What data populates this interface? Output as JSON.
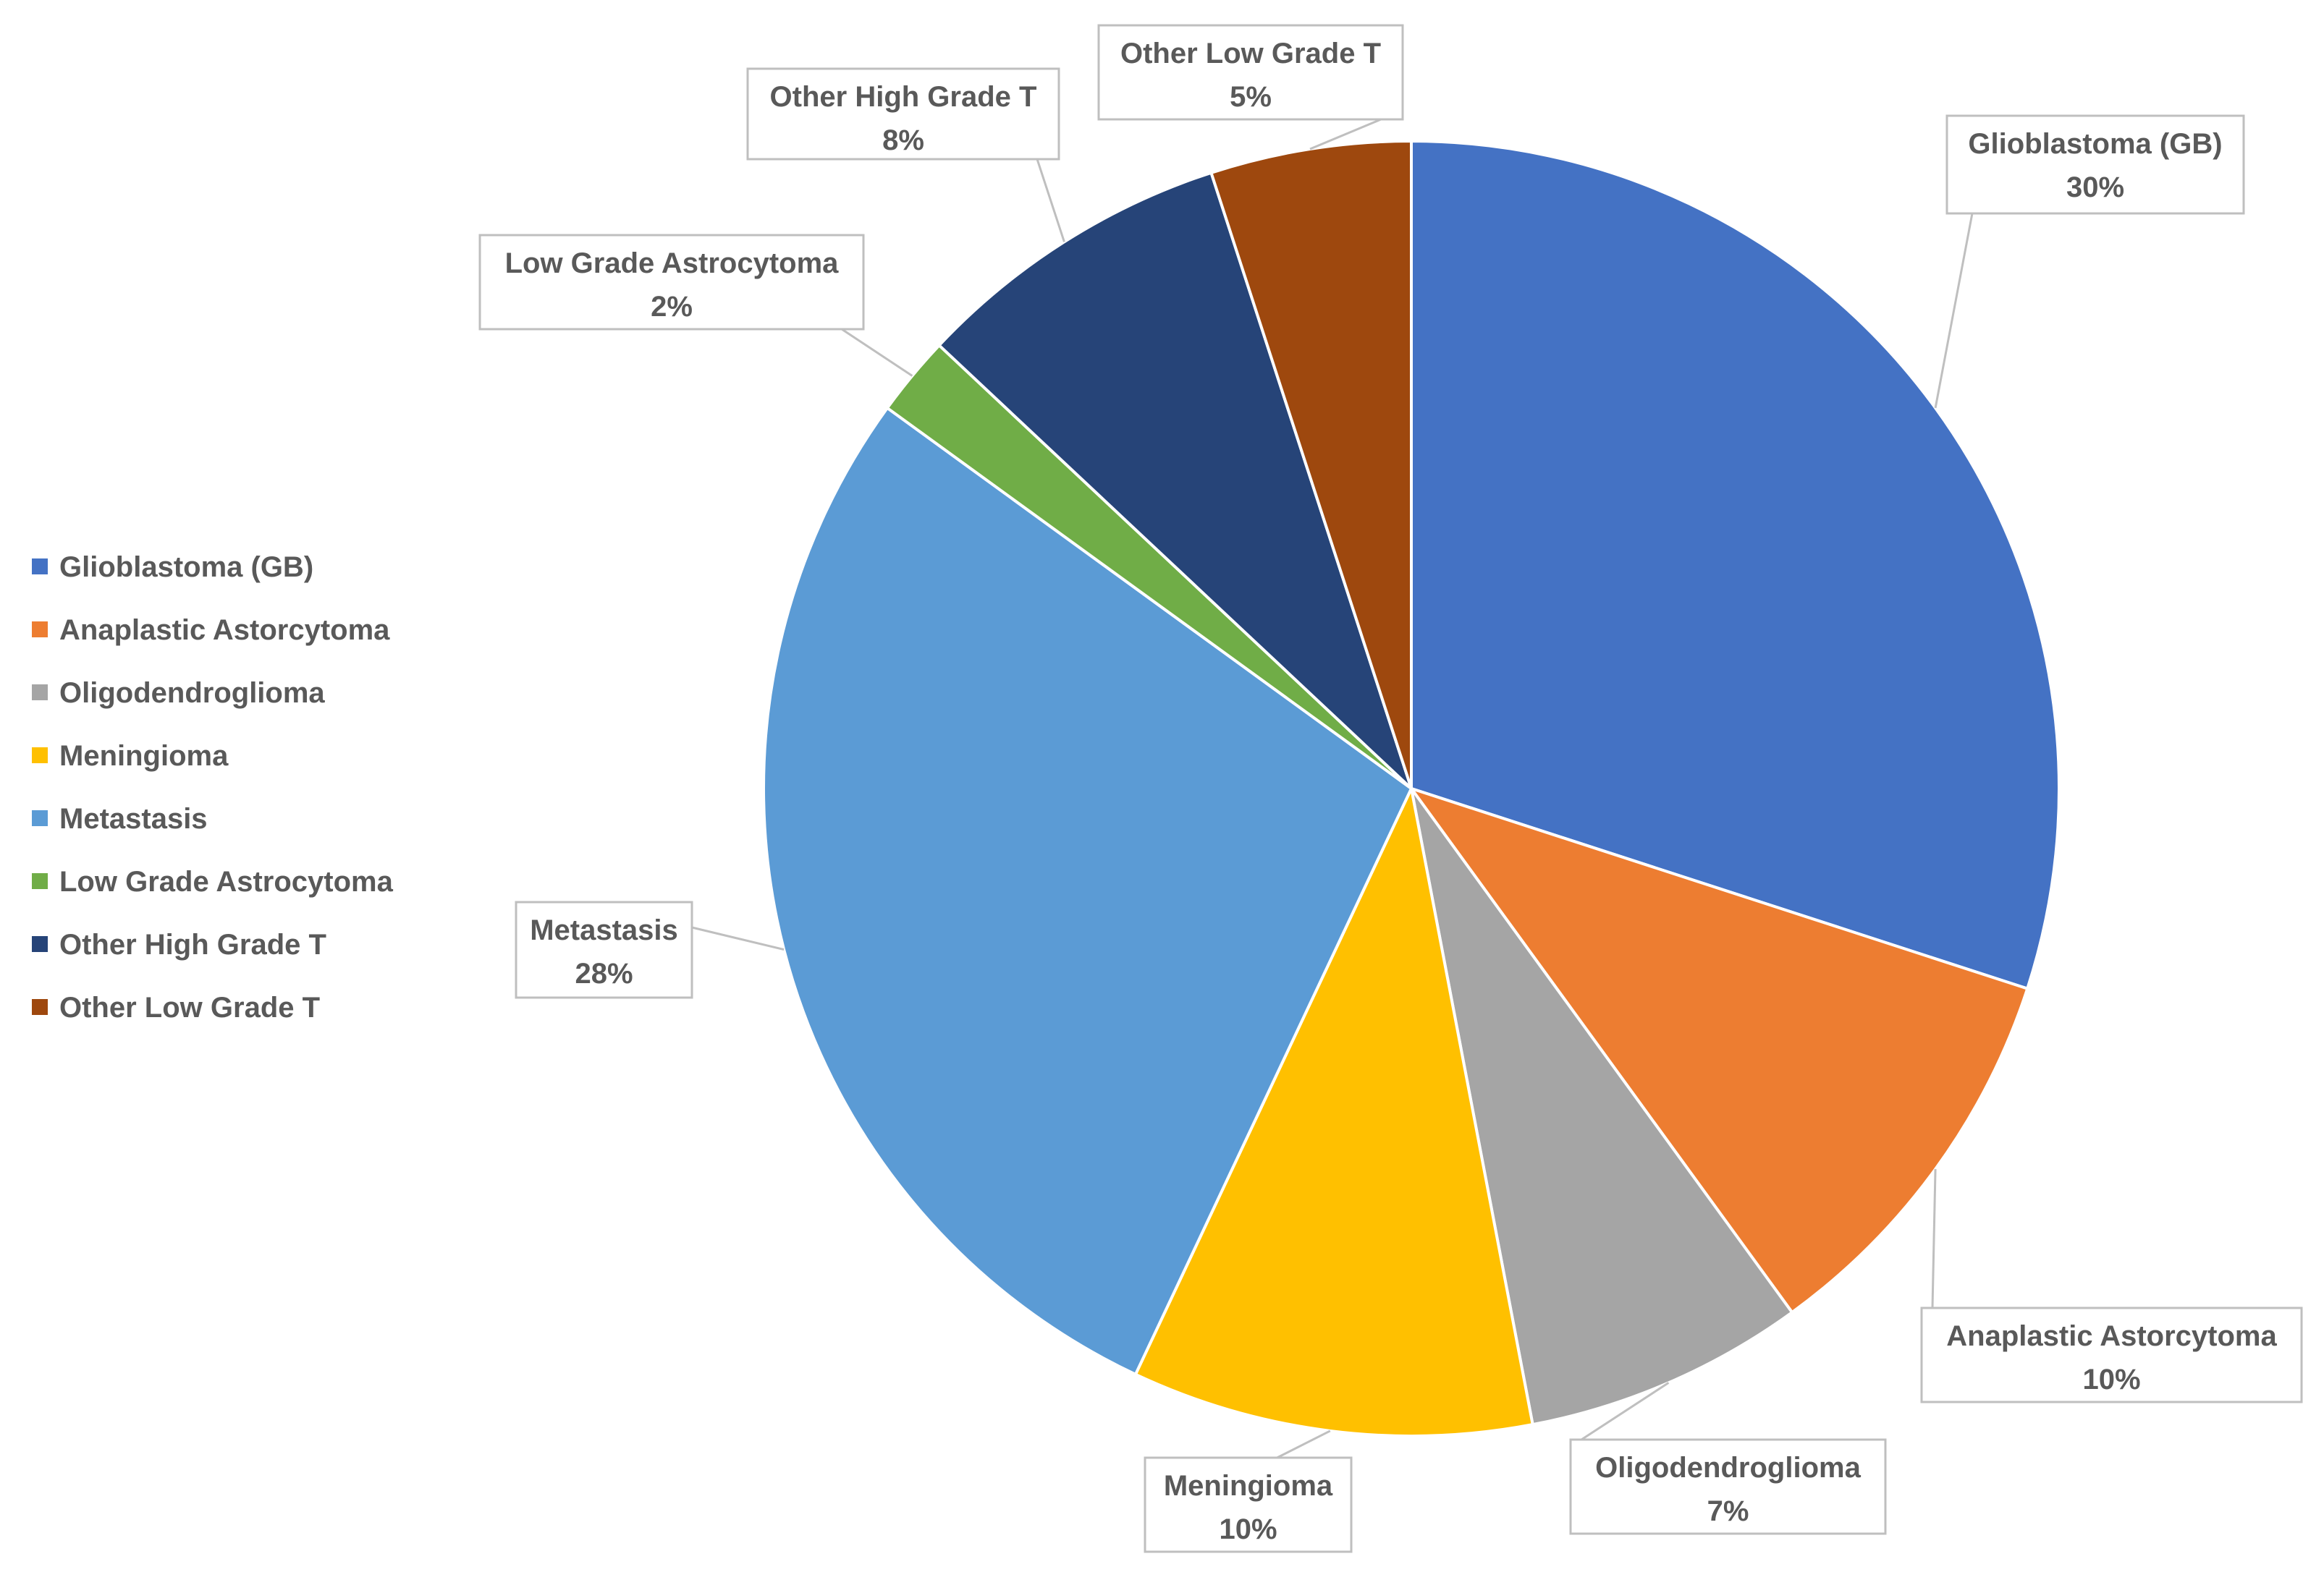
{
  "chart_data": {
    "type": "pie",
    "title": "",
    "legend_position": "left",
    "categories": [
      "Glioblastoma (GB)",
      "Anaplastic Astorcytoma",
      "Oligodendroglioma",
      "Meningioma",
      "Metastasis",
      "Low Grade Astrocytoma",
      "Other High Grade T",
      "Other Low Grade T"
    ],
    "values": [
      30,
      10,
      7,
      10,
      28,
      2,
      8,
      5
    ],
    "value_labels": [
      "30%",
      "10%",
      "7%",
      "10%",
      "28%",
      "2%",
      "8%",
      "5%"
    ],
    "colors": [
      "#4472C4",
      "#ED7D31",
      "#A5A5A5",
      "#FFC000",
      "#5B9BD5",
      "#70AD47",
      "#264478",
      "#9E480E"
    ]
  }
}
